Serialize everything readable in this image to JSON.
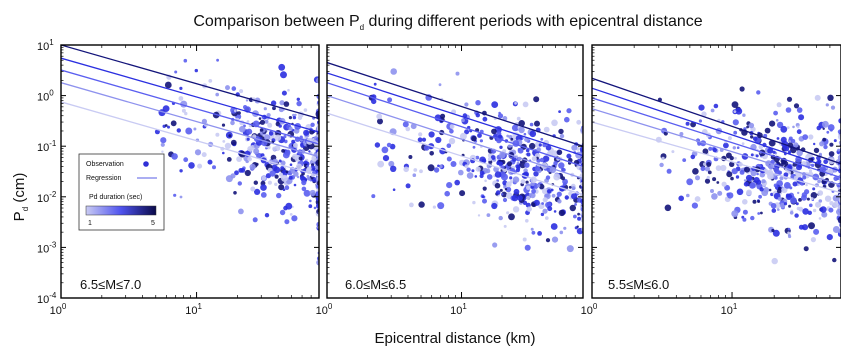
{
  "figure": {
    "title_main": "Comparison between P",
    "title_sub": "d",
    "title_rest": " during different periods with epicentral distance",
    "xlabel": "Epicentral distance (km)",
    "ylabel_main": "P",
    "ylabel_sub": "d",
    "ylabel_rest": " (cm)"
  },
  "legend": {
    "observation": "Observation",
    "regression": "Regression",
    "colorbar_title": "Pd duration (sec)",
    "colorbar_min": "1",
    "colorbar_max": "5"
  },
  "colors": {
    "dark": "#0a0a4a",
    "mid": "#2f2fd6",
    "light": "#cfd0f2",
    "scale": [
      "#c9cbf3",
      "#8e92ee",
      "#5a5ef0",
      "#2b2fe0",
      "#13147a"
    ]
  },
  "chart_data": [
    {
      "type": "scatter",
      "title": "6.5≤M≤7.0",
      "xscale": "log",
      "yscale": "log",
      "xlim": [
        1,
        80
      ],
      "ylim": [
        0.0001,
        10
      ],
      "x_ticks": [
        {
          "base": "10",
          "exp": "0"
        },
        {
          "base": "10",
          "exp": "1"
        }
      ],
      "y_ticks": [
        {
          "base": "10",
          "exp": "1"
        },
        {
          "base": "10",
          "exp": "0"
        },
        {
          "base": "10",
          "exp": "-1"
        },
        {
          "base": "10",
          "exp": "-2"
        },
        {
          "base": "10",
          "exp": "-3"
        },
        {
          "base": "10",
          "exp": "-4"
        }
      ],
      "regression": [
        {
          "duration": 5,
          "x": [
            1,
            80
          ],
          "y": [
            10.0,
            0.35
          ]
        },
        {
          "duration": 4,
          "x": [
            1,
            80
          ],
          "y": [
            5.5,
            0.19
          ]
        },
        {
          "duration": 3,
          "x": [
            1,
            80
          ],
          "y": [
            3.2,
            0.11
          ]
        },
        {
          "duration": 2,
          "x": [
            1,
            80
          ],
          "y": [
            1.8,
            0.062
          ]
        },
        {
          "duration": 1,
          "x": [
            1,
            80
          ],
          "y": [
            0.75,
            0.026
          ]
        }
      ],
      "cloud": {
        "xmin": 5,
        "xmax": 80,
        "ymin": 0.0005,
        "ymax": 5,
        "center_x": 60,
        "center_y": 0.06
      }
    },
    {
      "type": "scatter",
      "title": "6.0≤M≤6.5",
      "xscale": "log",
      "yscale": "log",
      "xlim": [
        1,
        80
      ],
      "ylim": [
        0.0001,
        10
      ],
      "x_ticks": [
        {
          "base": "10",
          "exp": "0"
        },
        {
          "base": "10",
          "exp": "1"
        }
      ],
      "y_ticks": [],
      "regression": [
        {
          "duration": 5,
          "x": [
            1,
            80
          ],
          "y": [
            4.5,
            0.1
          ]
        },
        {
          "duration": 4,
          "x": [
            1,
            80
          ],
          "y": [
            2.8,
            0.065
          ]
        },
        {
          "duration": 3,
          "x": [
            1,
            80
          ],
          "y": [
            1.8,
            0.04
          ]
        },
        {
          "duration": 2,
          "x": [
            1,
            80
          ],
          "y": [
            1.0,
            0.023
          ]
        },
        {
          "duration": 1,
          "x": [
            1,
            80
          ],
          "y": [
            0.45,
            0.011
          ]
        }
      ],
      "cloud": {
        "xmin": 2,
        "xmax": 80,
        "ymin": 0.0002,
        "ymax": 3,
        "center_x": 35,
        "center_y": 0.03
      }
    },
    {
      "type": "scatter",
      "title": "5.5≤M≤6.0",
      "xscale": "log",
      "yscale": "log",
      "xlim": [
        1,
        60
      ],
      "ylim": [
        0.0001,
        10
      ],
      "x_ticks": [
        {
          "base": "10",
          "exp": "0"
        },
        {
          "base": "10",
          "exp": "1"
        }
      ],
      "y_ticks": [],
      "regression": [
        {
          "duration": 5,
          "x": [
            1,
            60
          ],
          "y": [
            2.2,
            0.045
          ]
        },
        {
          "duration": 4,
          "x": [
            1,
            60
          ],
          "y": [
            1.4,
            0.032
          ]
        },
        {
          "duration": 3,
          "x": [
            1,
            60
          ],
          "y": [
            0.9,
            0.024
          ]
        },
        {
          "duration": 2,
          "x": [
            1,
            60
          ],
          "y": [
            0.55,
            0.017
          ]
        },
        {
          "duration": 1,
          "x": [
            1,
            60
          ],
          "y": [
            0.3,
            0.012
          ]
        }
      ],
      "cloud": {
        "xmin": 3,
        "xmax": 60,
        "ymin": 0.0005,
        "ymax": 1.5,
        "center_x": 25,
        "center_y": 0.03
      }
    }
  ]
}
